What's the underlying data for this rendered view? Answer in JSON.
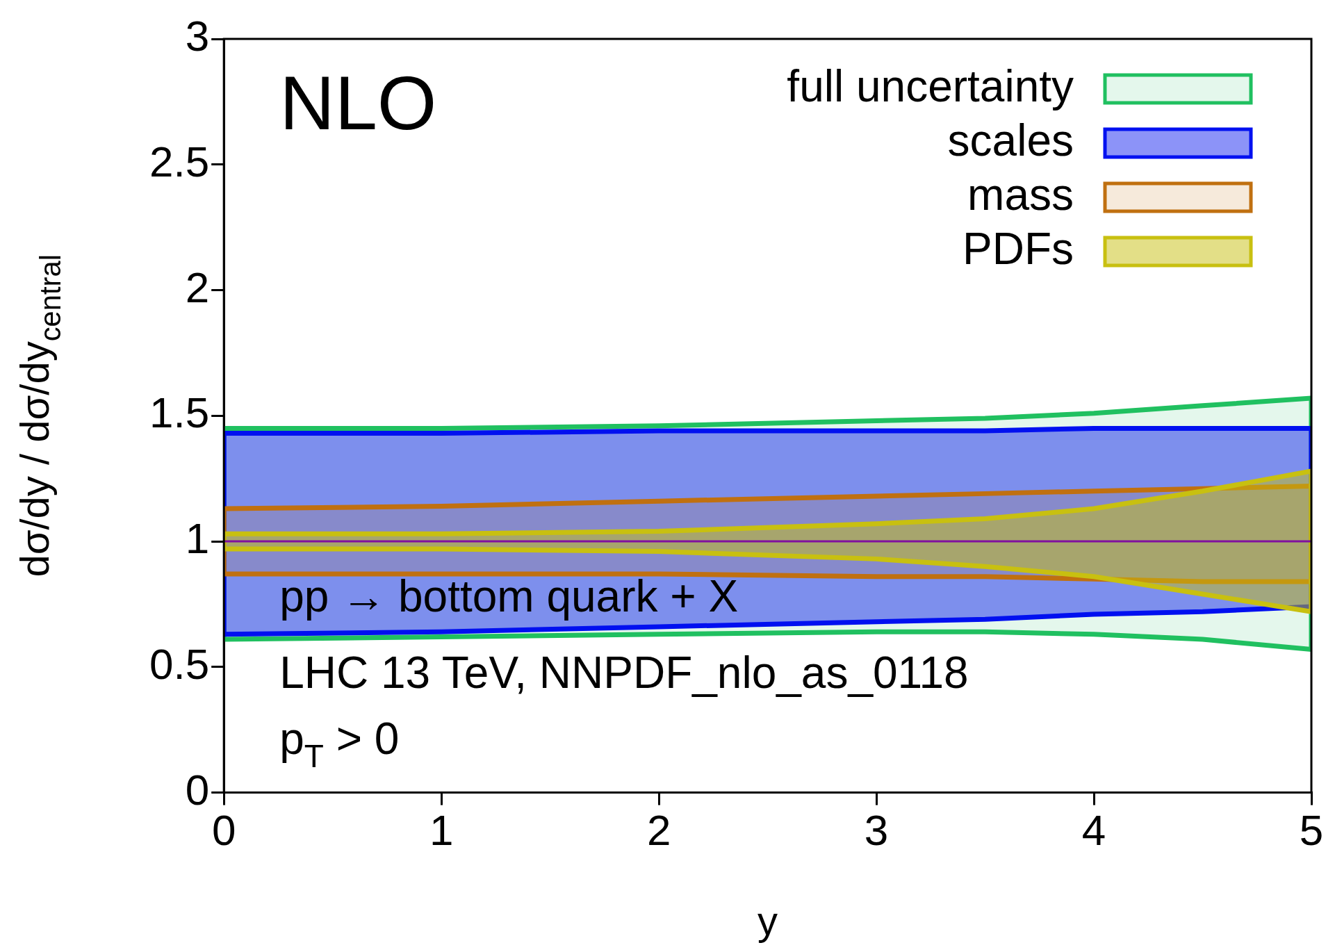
{
  "chart_data": {
    "type": "line",
    "xlabel": "y",
    "ylabel": "dσ/dy / dσ/dy$_{central}$",
    "x": [
      0,
      1,
      2,
      3,
      3.5,
      4,
      4.5,
      5
    ],
    "xlim": [
      0,
      5
    ],
    "xticks": [
      0,
      1,
      2,
      3,
      4,
      5
    ],
    "ylim": [
      0,
      3
    ],
    "yticks": [
      0,
      0.5,
      1,
      1.5,
      2,
      2.5,
      3
    ],
    "grid": false,
    "legend": "top right",
    "marker": "none",
    "line_style": "solid",
    "series": [
      {
        "name": "full uncertainty",
        "color": "#20c060",
        "values": [
          null,
          null,
          null,
          null,
          null,
          null,
          null,
          null
        ],
        "lower": [
          0.61,
          0.62,
          0.63,
          0.64,
          0.64,
          0.63,
          0.61,
          0.57
        ],
        "upper": [
          1.45,
          1.45,
          1.46,
          1.48,
          1.49,
          1.51,
          1.54,
          1.57
        ]
      },
      {
        "name": "scales",
        "color": "#0010f0",
        "values": [
          null,
          null,
          null,
          null,
          null,
          null,
          null,
          null
        ],
        "lower": [
          0.63,
          0.64,
          0.66,
          0.68,
          0.69,
          0.71,
          0.72,
          0.74
        ],
        "upper": [
          1.43,
          1.43,
          1.44,
          1.44,
          1.44,
          1.45,
          1.45,
          1.45
        ]
      },
      {
        "name": "mass",
        "color": "#c07010",
        "values": [
          null,
          null,
          null,
          null,
          null,
          null,
          null,
          null
        ],
        "lower": [
          0.87,
          0.87,
          0.87,
          0.86,
          0.86,
          0.85,
          0.84,
          0.84
        ],
        "upper": [
          1.13,
          1.14,
          1.16,
          1.18,
          1.19,
          1.2,
          1.21,
          1.22
        ]
      },
      {
        "name": "PDFs",
        "color": "#c8c010",
        "values": [
          null,
          null,
          null,
          null,
          null,
          null,
          null,
          null
        ],
        "lower": [
          0.97,
          0.97,
          0.96,
          0.93,
          0.9,
          0.86,
          0.79,
          0.72
        ],
        "upper": [
          1.03,
          1.03,
          1.04,
          1.07,
          1.09,
          1.13,
          1.2,
          1.28
        ]
      },
      {
        "type": "line",
        "color": "#8010a0",
        "values": [
          1,
          1,
          1,
          1,
          1,
          1,
          1,
          1
        ]
      }
    ],
    "annotations": [
      "NLO",
      "pp → bottom quark + X",
      "LHC 13 TeV, NNPDF_nlo_as_0118",
      "p$_{T}$ > 0"
    ]
  }
}
